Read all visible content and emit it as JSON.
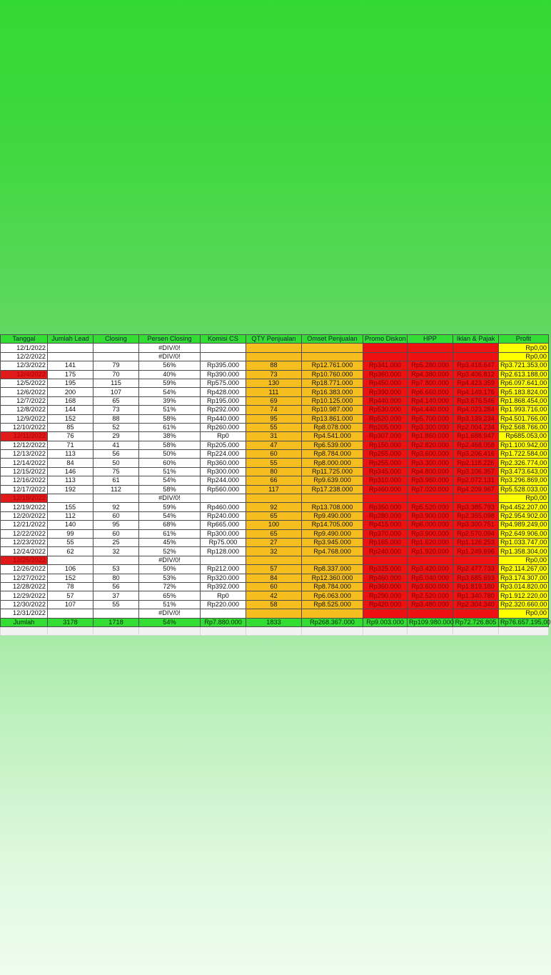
{
  "columns": [
    "Tanggal",
    "Jumlah Lead",
    "Closing",
    "Persen Closing",
    "Komisi CS",
    "QTY Penjualan",
    "Omset Penjualan",
    "Promo Diskon",
    "HPP",
    "Iklan & Pajak",
    "Profit"
  ],
  "colors": {
    "header": "#33dd33",
    "orange": "#f5be1e",
    "red": "#ee1111",
    "yellow": "#ffff00",
    "date_red": "#e11a1a"
  },
  "rows": [
    {
      "tanggal": "12/1/2022",
      "lead": "",
      "closing": "",
      "persen": "#DIV/0!",
      "komisi": "",
      "qty": "",
      "omset": "",
      "promo": "",
      "hpp": "",
      "iklan": "",
      "profit": "Rp0,00",
      "red": false
    },
    {
      "tanggal": "12/2/2022",
      "lead": "",
      "closing": "",
      "persen": "#DIV/0!",
      "komisi": "",
      "qty": "",
      "omset": "",
      "promo": "",
      "hpp": "",
      "iklan": "",
      "profit": "Rp0,00",
      "red": false
    },
    {
      "tanggal": "12/3/2022",
      "lead": "141",
      "closing": "79",
      "persen": "56%",
      "komisi": "Rp395.000",
      "qty": "88",
      "omset": "Rp12.761.000",
      "promo": "Rp341.000",
      "hpp": "Rp5.280.000",
      "iklan": "Rp3.418.647",
      "profit": "Rp3.721.353,00",
      "red": false
    },
    {
      "tanggal": "12/4/2022",
      "lead": "175",
      "closing": "70",
      "persen": "40%",
      "komisi": "Rp390.000",
      "qty": "73",
      "omset": "Rp10.760.000",
      "promo": "Rp360.000",
      "hpp": "Rp4.380.000",
      "iklan": "Rp3.406.812",
      "profit": "Rp2.613.188,00",
      "red": true
    },
    {
      "tanggal": "12/5/2022",
      "lead": "195",
      "closing": "115",
      "persen": "59%",
      "komisi": "Rp575.000",
      "qty": "130",
      "omset": "Rp18.771.000",
      "promo": "Rp450.000",
      "hpp": "Rp7.800.000",
      "iklan": "Rp4.423.359",
      "profit": "Rp6.097.641,00",
      "red": false
    },
    {
      "tanggal": "12/6/2022",
      "lead": "200",
      "closing": "107",
      "persen": "54%",
      "komisi": "Rp428.000",
      "qty": "111",
      "omset": "Rp16.383.000",
      "promo": "Rp390.000",
      "hpp": "Rp6.660.000",
      "iklan": "Rp4.149.176",
      "profit": "Rp5.183.824,00",
      "red": false
    },
    {
      "tanggal": "12/7/2022",
      "lead": "168",
      "closing": "65",
      "persen": "39%",
      "komisi": "Rp195.000",
      "qty": "69",
      "omset": "Rp10.125.000",
      "promo": "Rp440.000",
      "hpp": "Rp4.140.000",
      "iklan": "Rp3.676.546",
      "profit": "Rp1.868.454,00",
      "red": false
    },
    {
      "tanggal": "12/8/2022",
      "lead": "144",
      "closing": "73",
      "persen": "51%",
      "komisi": "Rp292.000",
      "qty": "74",
      "omset": "Rp10.987.000",
      "promo": "Rp530.000",
      "hpp": "Rp4.440.000",
      "iklan": "Rp4.023.284",
      "profit": "Rp1.993.716,00",
      "red": false
    },
    {
      "tanggal": "12/9/2022",
      "lead": "152",
      "closing": "88",
      "persen": "58%",
      "komisi": "Rp440.000",
      "qty": "95",
      "omset": "Rp13.861.000",
      "promo": "Rp520.000",
      "hpp": "Rp5.700.000",
      "iklan": "Rp3.139.234",
      "profit": "Rp4.501.766,00",
      "red": false
    },
    {
      "tanggal": "12/10/2022",
      "lead": "85",
      "closing": "52",
      "persen": "61%",
      "komisi": "Rp260.000",
      "qty": "55",
      "omset": "Rp8.078.000",
      "promo": "Rp205.000",
      "hpp": "Rp3.300.000",
      "iklan": "Rp2.004.234",
      "profit": "Rp2.568.766,00",
      "red": false
    },
    {
      "tanggal": "12/11/2022",
      "lead": "76",
      "closing": "29",
      "persen": "38%",
      "komisi": "Rp0",
      "qty": "31",
      "omset": "Rp4.541.000",
      "promo": "Rp307.000",
      "hpp": "Rp1.860.000",
      "iklan": "Rp1.688.947",
      "profit": "Rp685.053,00",
      "red": true
    },
    {
      "tanggal": "12/12/2022",
      "lead": "71",
      "closing": "41",
      "persen": "58%",
      "komisi": "Rp205.000",
      "qty": "47",
      "omset": "Rp6.539.000",
      "promo": "Rp150.000",
      "hpp": "Rp2.820.000",
      "iklan": "Rp2.468.058",
      "profit": "Rp1.100.942,00",
      "red": false
    },
    {
      "tanggal": "12/13/2022",
      "lead": "113",
      "closing": "56",
      "persen": "50%",
      "komisi": "Rp224.000",
      "qty": "60",
      "omset": "Rp8.784.000",
      "promo": "Rp255.000",
      "hpp": "Rp3.600.000",
      "iklan": "Rp3.206.416",
      "profit": "Rp1.722.584,00",
      "red": false
    },
    {
      "tanggal": "12/14/2022",
      "lead": "84",
      "closing": "50",
      "persen": "60%",
      "komisi": "Rp360.000",
      "qty": "55",
      "omset": "Rp8.000.000",
      "promo": "Rp255.000",
      "hpp": "Rp3.300.000",
      "iklan": "Rp2.118.226",
      "profit": "Rp2.326.774,00",
      "red": false
    },
    {
      "tanggal": "12/15/2022",
      "lead": "146",
      "closing": "75",
      "persen": "51%",
      "komisi": "Rp300.000",
      "qty": "80",
      "omset": "Rp11.725.000",
      "promo": "Rp345.000",
      "hpp": "Rp4.800.000",
      "iklan": "Rp3.106.357",
      "profit": "Rp3.473.643,00",
      "red": false
    },
    {
      "tanggal": "12/16/2022",
      "lead": "113",
      "closing": "61",
      "persen": "54%",
      "komisi": "Rp244.000",
      "qty": "66",
      "omset": "Rp9.639.000",
      "promo": "Rp310.000",
      "hpp": "Rp3.960.000",
      "iklan": "Rp2.072.131",
      "profit": "Rp3.296.869,00",
      "red": false
    },
    {
      "tanggal": "12/17/2022",
      "lead": "192",
      "closing": "112",
      "persen": "58%",
      "komisi": "Rp560.000",
      "qty": "117",
      "omset": "Rp17.238.000",
      "promo": "Rp460.000",
      "hpp": "Rp7.020.000",
      "iklan": "Rp4.209.967",
      "profit": "Rp5.528.033,00",
      "red": false
    },
    {
      "tanggal": "12/18/2022",
      "lead": "",
      "closing": "",
      "persen": "#DIV/0!",
      "komisi": "",
      "qty": "",
      "omset": "",
      "promo": "",
      "hpp": "",
      "iklan": "",
      "profit": "Rp0,00",
      "red": true
    },
    {
      "tanggal": "12/19/2022",
      "lead": "155",
      "closing": "92",
      "persen": "59%",
      "komisi": "Rp460.000",
      "qty": "92",
      "omset": "Rp13.708.000",
      "promo": "Rp350.000",
      "hpp": "Rp5.520.000",
      "iklan": "Rp3.385.793",
      "profit": "Rp4.452.207,00",
      "red": false
    },
    {
      "tanggal": "12/20/2022",
      "lead": "112",
      "closing": "60",
      "persen": "54%",
      "komisi": "Rp240.000",
      "qty": "65",
      "omset": "Rp9.490.000",
      "promo": "Rp280.000",
      "hpp": "Rp3.900.000",
      "iklan": "Rp2.355.098",
      "profit": "Rp2.954.902,00",
      "red": false
    },
    {
      "tanggal": "12/21/2022",
      "lead": "140",
      "closing": "95",
      "persen": "68%",
      "komisi": "Rp665.000",
      "qty": "100",
      "omset": "Rp14.705.000",
      "promo": "Rp415.000",
      "hpp": "Rp6.000.000",
      "iklan": "Rp3.300.751",
      "profit": "Rp4.989.249,00",
      "red": false
    },
    {
      "tanggal": "12/22/2022",
      "lead": "99",
      "closing": "60",
      "persen": "61%",
      "komisi": "Rp300.000",
      "qty": "65",
      "omset": "Rp9.490.000",
      "promo": "Rp370.000",
      "hpp": "Rp3.900.000",
      "iklan": "Rp2.570.094",
      "profit": "Rp2.649.906,00",
      "red": false
    },
    {
      "tanggal": "12/23/2022",
      "lead": "55",
      "closing": "25",
      "persen": "45%",
      "komisi": "Rp75.000",
      "qty": "27",
      "omset": "Rp3.945.000",
      "promo": "Rp165.000",
      "hpp": "Rp1.620.000",
      "iklan": "Rp1.126.253",
      "profit": "Rp1.033.747,00",
      "red": false
    },
    {
      "tanggal": "12/24/2022",
      "lead": "62",
      "closing": "32",
      "persen": "52%",
      "komisi": "Rp128.000",
      "qty": "32",
      "omset": "Rp4.768.000",
      "promo": "Rp240.000",
      "hpp": "Rp1.920.000",
      "iklan": "Rp1.249.696",
      "profit": "Rp1.358.304,00",
      "red": false
    },
    {
      "tanggal": "12/25/2022",
      "lead": "",
      "closing": "",
      "persen": "#DIV/0!",
      "komisi": "",
      "qty": "",
      "omset": "",
      "promo": "",
      "hpp": "",
      "iklan": "",
      "profit": "Rp0,00",
      "red": true
    },
    {
      "tanggal": "12/26/2022",
      "lead": "106",
      "closing": "53",
      "persen": "50%",
      "komisi": "Rp212.000",
      "qty": "57",
      "omset": "Rp8.337.000",
      "promo": "Rp325.000",
      "hpp": "Rp3.420.000",
      "iklan": "Rp2.477.733",
      "profit": "Rp2.114.267,00",
      "red": false
    },
    {
      "tanggal": "12/27/2022",
      "lead": "152",
      "closing": "80",
      "persen": "53%",
      "komisi": "Rp320.000",
      "qty": "84",
      "omset": "Rp12.360.000",
      "promo": "Rp460.000",
      "hpp": "Rp5.040.000",
      "iklan": "Rp3.685.693",
      "profit": "Rp3.174.307,00",
      "red": false
    },
    {
      "tanggal": "12/28/2022",
      "lead": "78",
      "closing": "56",
      "persen": "72%",
      "komisi": "Rp392.000",
      "qty": "60",
      "omset": "Rp8.784.000",
      "promo": "Rp360.000",
      "hpp": "Rp3.600.000",
      "iklan": "Rp1.819.180",
      "profit": "Rp3.014.820,00",
      "red": false
    },
    {
      "tanggal": "12/29/2022",
      "lead": "57",
      "closing": "37",
      "persen": "65%",
      "komisi": "Rp0",
      "qty": "42",
      "omset": "Rp6.063.000",
      "promo": "Rp290.000",
      "hpp": "Rp2.520.000",
      "iklan": "Rp1.340.780",
      "profit": "Rp1.912.220,00",
      "red": false
    },
    {
      "tanggal": "12/30/2022",
      "lead": "107",
      "closing": "55",
      "persen": "51%",
      "komisi": "Rp220.000",
      "qty": "58",
      "omset": "Rp8.525.000",
      "promo": "Rp420.000",
      "hpp": "Rp3.480.000",
      "iklan": "Rp2.304.340",
      "profit": "Rp2.320.660,00",
      "red": false
    },
    {
      "tanggal": "12/31/2022",
      "lead": "",
      "closing": "",
      "persen": "#DIV/0!",
      "komisi": "",
      "qty": "",
      "omset": "",
      "promo": "",
      "hpp": "",
      "iklan": "",
      "profit": "Rp0,00",
      "red": false
    }
  ],
  "total": {
    "tanggal": "Jumlah",
    "lead": "3178",
    "closing": "1718",
    "persen": "54%",
    "komisi": "Rp7.880.000",
    "qty": "1833",
    "omset": "Rp268.367.000",
    "promo": "Rp9.003.000",
    "hpp": "Rp109.980.000",
    "iklan": "Rp72.726.805",
    "profit": "Rp76.657.195,00"
  }
}
